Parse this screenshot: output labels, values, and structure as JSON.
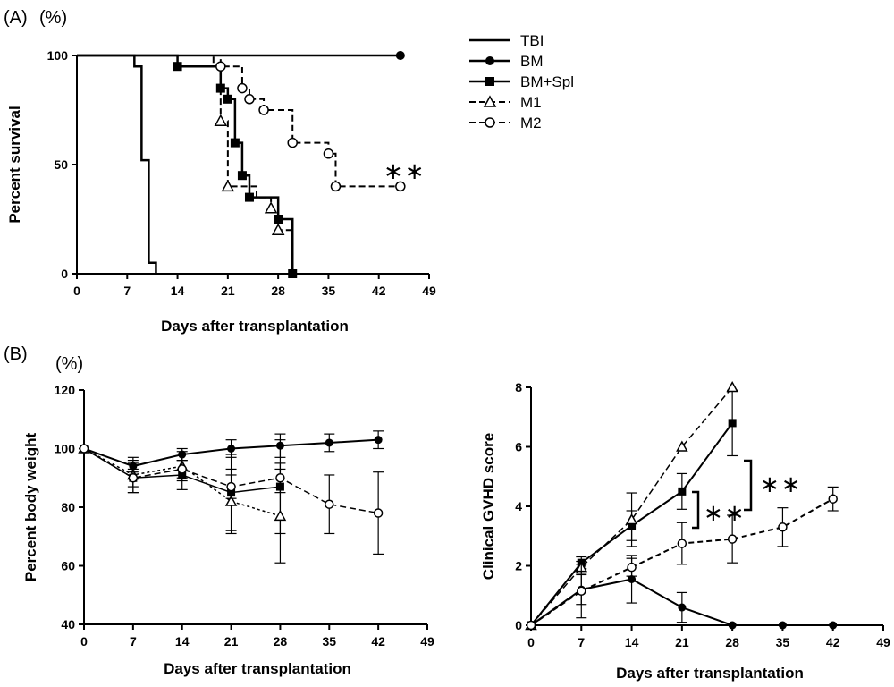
{
  "panels": {
    "a": {
      "label": "(A)",
      "unit": "(%)"
    },
    "b": {
      "label": "(B)",
      "unit": "(%)"
    }
  },
  "legend": {
    "entries": [
      {
        "name": "TBI",
        "marker": "none",
        "dash": "solid"
      },
      {
        "name": "BM",
        "marker": "filled-circle",
        "dash": "solid"
      },
      {
        "name": "BM+Spl",
        "marker": "filled-square",
        "dash": "solid"
      },
      {
        "name": "M1",
        "marker": "open-triangle",
        "dash": "dashed"
      },
      {
        "name": "M2",
        "marker": "open-circle",
        "dash": "dashed"
      }
    ]
  },
  "chart_data": [
    {
      "type": "line",
      "subtype": "kaplan-meier step",
      "xlabel": "Days after transplantation",
      "ylabel": "Percent survival",
      "xlim": [
        0,
        49
      ],
      "ylim": [
        0,
        100
      ],
      "xticks": [
        "0",
        "7",
        "14",
        "21",
        "28",
        "35",
        "42",
        "49"
      ],
      "yticks": [
        "0",
        "50",
        "100"
      ],
      "annotation": "∗∗",
      "series": [
        {
          "name": "TBI",
          "x": [
            0,
            8,
            8,
            9,
            9,
            10,
            10,
            11,
            11
          ],
          "y": [
            100,
            100,
            95,
            95,
            52,
            52,
            5,
            5,
            0
          ]
        },
        {
          "name": "BM",
          "x": [
            0,
            45
          ],
          "y": [
            100,
            100
          ]
        },
        {
          "name": "BM+Spl",
          "x": [
            0,
            14,
            14,
            20,
            20,
            21,
            21,
            22,
            22,
            23,
            23,
            24,
            24,
            28,
            28,
            29,
            29,
            30,
            30
          ],
          "y": [
            100,
            100,
            95,
            95,
            85,
            85,
            80,
            80,
            60,
            60,
            45,
            45,
            35,
            35,
            25,
            25,
            25,
            25,
            0
          ]
        },
        {
          "name": "M1",
          "x": [
            0,
            19,
            19,
            20,
            20,
            21,
            21,
            25,
            25,
            27,
            27,
            28,
            28,
            30,
            30
          ],
          "y": [
            100,
            100,
            95,
            95,
            70,
            70,
            40,
            40,
            35,
            35,
            30,
            30,
            20,
            20,
            0
          ]
        },
        {
          "name": "M2",
          "x": [
            0,
            20,
            20,
            23,
            23,
            24,
            24,
            26,
            26,
            30,
            30,
            35,
            35,
            36,
            36,
            45
          ],
          "y": [
            100,
            100,
            95,
            95,
            85,
            85,
            80,
            80,
            75,
            75,
            60,
            60,
            55,
            55,
            40,
            40
          ]
        }
      ]
    },
    {
      "type": "line",
      "xlabel": "Days after transplantation",
      "ylabel": "Percent body  weight",
      "xlim": [
        0,
        49
      ],
      "ylim": [
        40,
        120
      ],
      "xticks": [
        "0",
        "7",
        "14",
        "21",
        "28",
        "35",
        "42",
        "49"
      ],
      "yticks": [
        "40",
        "60",
        "80",
        "100",
        "120"
      ],
      "series": [
        {
          "name": "BM",
          "x": [
            0,
            7,
            14,
            21,
            28,
            35,
            42
          ],
          "y": [
            100,
            94,
            98,
            100,
            101,
            102,
            103
          ],
          "err": [
            0,
            2,
            2,
            3,
            4,
            3,
            3
          ]
        },
        {
          "name": "BM+Spl",
          "x": [
            0,
            7,
            14,
            21,
            28
          ],
          "y": [
            100,
            90,
            91,
            85,
            87
          ],
          "err": [
            0,
            5,
            5,
            13,
            16
          ]
        },
        {
          "name": "M1",
          "x": [
            0,
            7,
            14,
            21,
            28
          ],
          "y": [
            100,
            91,
            94,
            82,
            77
          ],
          "err": [
            0,
            6,
            5,
            11,
            16
          ]
        },
        {
          "name": "M2",
          "x": [
            0,
            7,
            14,
            21,
            28,
            35,
            42
          ],
          "y": [
            100,
            90,
            93,
            87,
            90,
            81,
            78
          ],
          "err": [
            0,
            3,
            3,
            4,
            5,
            10,
            14
          ]
        }
      ]
    },
    {
      "type": "line",
      "xlabel": "Days after transplantation",
      "ylabel": "Clinical GVHD score",
      "xlim": [
        0,
        49
      ],
      "ylim": [
        0,
        8
      ],
      "xticks": [
        "0",
        "7",
        "14",
        "21",
        "28",
        "35",
        "42",
        "49"
      ],
      "yticks": [
        "0",
        "2",
        "4",
        "6",
        "8"
      ],
      "annotations": [
        "∗∗",
        "∗∗"
      ],
      "series": [
        {
          "name": "BM",
          "x": [
            0,
            7,
            14,
            21,
            28,
            35,
            42
          ],
          "y": [
            0,
            1.2,
            1.55,
            0.6,
            0,
            0,
            0
          ],
          "err": [
            0,
            0.5,
            0.8,
            0.5,
            0,
            0,
            0
          ]
        },
        {
          "name": "BM+Spl",
          "x": [
            0,
            7,
            14,
            21,
            28
          ],
          "y": [
            0,
            2.1,
            3.35,
            4.5,
            6.8
          ],
          "err": [
            0,
            0.2,
            0.5,
            0.6,
            1.1
          ]
        },
        {
          "name": "M1",
          "x": [
            0,
            7,
            14,
            21,
            28
          ],
          "y": [
            0,
            1.95,
            3.55,
            6.0,
            8.0
          ],
          "err": [
            0,
            0.2,
            0.9,
            0,
            0
          ]
        },
        {
          "name": "M2",
          "x": [
            0,
            7,
            14,
            21,
            28,
            35,
            42
          ],
          "y": [
            0,
            1.15,
            1.95,
            2.75,
            2.9,
            3.3,
            4.25
          ],
          "err": [
            0,
            0.9,
            0.3,
            0.7,
            0.8,
            0.65,
            0.4
          ]
        }
      ]
    }
  ]
}
